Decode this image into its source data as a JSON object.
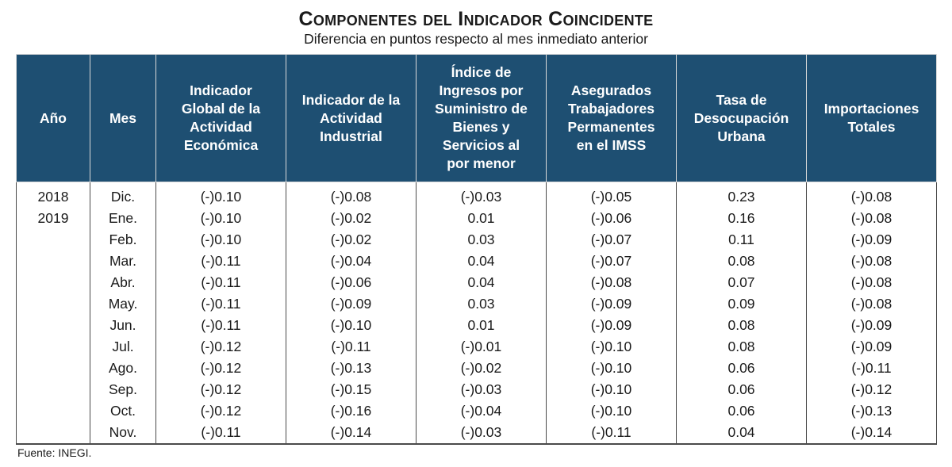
{
  "title": "Componentes del Indicador Coincidente",
  "subtitle": "Diferencia en puntos respecto al mes inmediato anterior",
  "headers": {
    "year": "Año",
    "month": "Mes",
    "igae": [
      "Indicador",
      "Global de la",
      "Actividad",
      "Económica"
    ],
    "industrial": [
      "Indicador de la",
      "Actividad",
      "Industrial"
    ],
    "retail": [
      "Índice de",
      "Ingresos por",
      "Suministro de",
      "Bienes y",
      "Servicios al",
      "por menor"
    ],
    "imss": [
      "Asegurados",
      "Trabajadores",
      "Permanentes",
      "en el IMSS"
    ],
    "unemployment": [
      "Tasa de",
      "Desocupación",
      "Urbana"
    ],
    "imports": [
      "Importaciones",
      "Totales"
    ]
  },
  "rows": [
    {
      "year": "2018",
      "month": "Dic.",
      "igae": "(-)0.10",
      "industrial": "(-)0.08",
      "retail": "(-)0.03",
      "imss": "(-)0.05",
      "unemployment": "0.23",
      "imports": "(-)0.08"
    },
    {
      "year": "2019",
      "month": "Ene.",
      "igae": "(-)0.10",
      "industrial": "(-)0.02",
      "retail": "0.01",
      "imss": "(-)0.06",
      "unemployment": "0.16",
      "imports": "(-)0.08"
    },
    {
      "year": "",
      "month": "Feb.",
      "igae": "(-)0.10",
      "industrial": "(-)0.02",
      "retail": "0.03",
      "imss": "(-)0.07",
      "unemployment": "0.11",
      "imports": "(-)0.09"
    },
    {
      "year": "",
      "month": "Mar.",
      "igae": "(-)0.11",
      "industrial": "(-)0.04",
      "retail": "0.04",
      "imss": "(-)0.07",
      "unemployment": "0.08",
      "imports": "(-)0.08"
    },
    {
      "year": "",
      "month": "Abr.",
      "igae": "(-)0.11",
      "industrial": "(-)0.06",
      "retail": "0.04",
      "imss": "(-)0.08",
      "unemployment": "0.07",
      "imports": "(-)0.08"
    },
    {
      "year": "",
      "month": "May.",
      "igae": "(-)0.11",
      "industrial": "(-)0.09",
      "retail": "0.03",
      "imss": "(-)0.09",
      "unemployment": "0.09",
      "imports": "(-)0.08"
    },
    {
      "year": "",
      "month": "Jun.",
      "igae": "(-)0.11",
      "industrial": "(-)0.10",
      "retail": "0.01",
      "imss": "(-)0.09",
      "unemployment": "0.08",
      "imports": "(-)0.09"
    },
    {
      "year": "",
      "month": "Jul.",
      "igae": "(-)0.12",
      "industrial": "(-)0.11",
      "retail": "(-)0.01",
      "imss": "(-)0.10",
      "unemployment": "0.08",
      "imports": "(-)0.09"
    },
    {
      "year": "",
      "month": "Ago.",
      "igae": "(-)0.12",
      "industrial": "(-)0.13",
      "retail": "(-)0.02",
      "imss": "(-)0.10",
      "unemployment": "0.06",
      "imports": "(-)0.11"
    },
    {
      "year": "",
      "month": "Sep.",
      "igae": "(-)0.12",
      "industrial": "(-)0.15",
      "retail": "(-)0.03",
      "imss": "(-)0.10",
      "unemployment": "0.06",
      "imports": "(-)0.12"
    },
    {
      "year": "",
      "month": "Oct.",
      "igae": "(-)0.12",
      "industrial": "(-)0.16",
      "retail": "(-)0.04",
      "imss": "(-)0.10",
      "unemployment": "0.06",
      "imports": "(-)0.13"
    },
    {
      "year": "",
      "month": "Nov.",
      "igae": "(-)0.11",
      "industrial": "(-)0.14",
      "retail": "(-)0.03",
      "imss": "(-)0.11",
      "unemployment": "0.04",
      "imports": "(-)0.14"
    }
  ],
  "source": "Fuente: INEGI.",
  "colors": {
    "header_bg": "#1e4f72",
    "header_text": "#ffffff",
    "border": "#4a4a4a"
  }
}
